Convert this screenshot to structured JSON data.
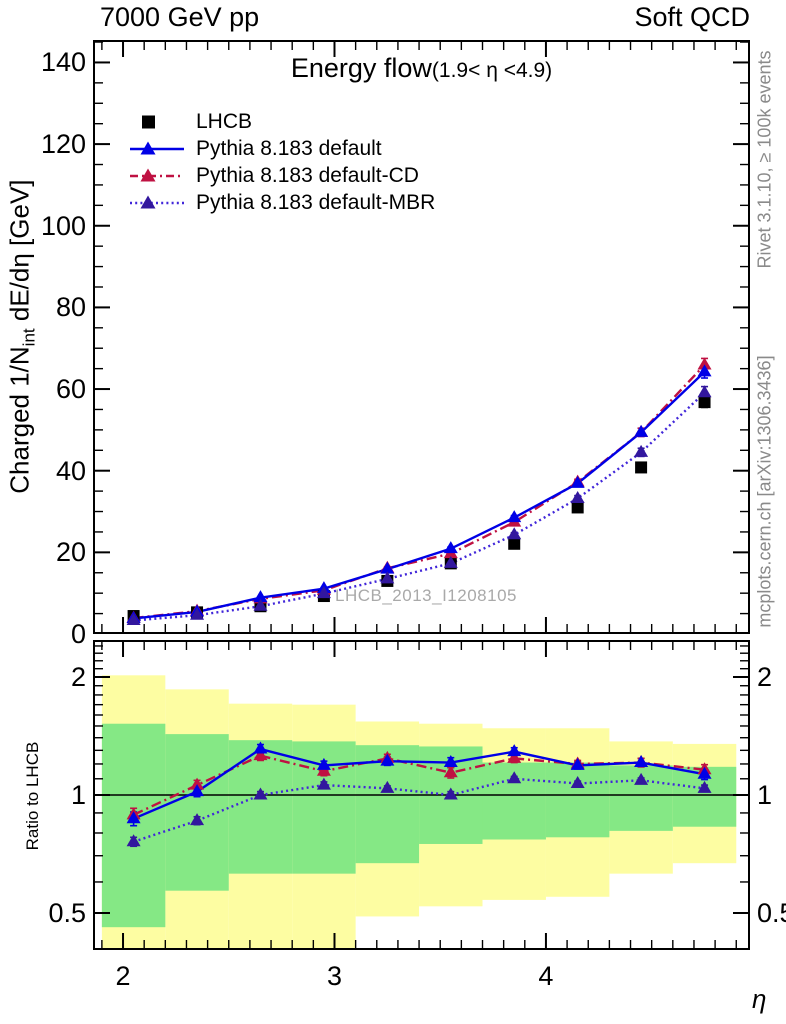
{
  "header": {
    "left": "7000 GeV pp",
    "right": "Soft QCD"
  },
  "side_notes": {
    "right_top": "Rivet 3.1.10, ≥ 100k events",
    "right_bottom": "mcplots.cern.ch [arXiv:1306.3436]"
  },
  "watermark": "LHCB_2013_I1208105",
  "title": {
    "main": "Energy flow",
    "range": "(1.9< η <4.9)"
  },
  "axes": {
    "main_ylabel": {
      "pre": "Charged 1/N",
      "sub": "int",
      "post": " dE/dη [GeV]"
    },
    "ratio_ylabel": "Ratio to LHCB",
    "xlabel": "η",
    "x_major_ticks": [
      2,
      3,
      4
    ],
    "main_y_major_ticks": [
      0,
      20,
      40,
      60,
      80,
      100,
      120,
      140
    ],
    "ratio_y_major_ticks": [
      "2",
      "1",
      "0.5"
    ]
  },
  "legend": [
    {
      "label": "LHCB",
      "marker": "square",
      "color": "#000000",
      "line": "none"
    },
    {
      "label": "Pythia 8.183 default",
      "marker": "triangle",
      "color": "#0000e6",
      "line": "solid",
      "line_color": "#0000e6"
    },
    {
      "label": "Pythia 8.183 default-CD",
      "marker": "triangle",
      "color": "#bf1142",
      "line": "dashdot",
      "line_color": "#bf1142"
    },
    {
      "label": "Pythia 8.183 default-MBR",
      "marker": "triangle",
      "color": "#32179e",
      "line": "dotted",
      "line_color": "#4126d9"
    }
  ],
  "colors": {
    "band_yellow": "#fdfda2",
    "band_green": "#85e885",
    "frame": "#000000",
    "gray_note": "#8a8a8a",
    "watermark_gray": "#a9a9a9"
  },
  "chart_data": [
    {
      "type": "line",
      "panel": "main",
      "title": "Energy flow (1.9< η <4.9)",
      "xlabel": "η",
      "ylabel": "Charged 1/N_int dE/dη [GeV]",
      "xlim": [
        1.86,
        4.97
      ],
      "ylim": [
        0,
        145.5
      ],
      "grid": false,
      "legend_position": "upper left",
      "x": [
        2.05,
        2.35,
        2.65,
        2.95,
        3.25,
        3.55,
        3.85,
        4.15,
        4.45,
        4.75
      ],
      "series": [
        {
          "name": "LHCB",
          "values": [
            4.4,
            5.3,
            6.8,
            9.3,
            13.0,
            17.3,
            22.1,
            31.0,
            40.8,
            56.8
          ],
          "errors": [
            0.2,
            0.2,
            0.3,
            0.3,
            0.4,
            0.5,
            0.6,
            0.8,
            1.0,
            1.3
          ]
        },
        {
          "name": "Pythia 8.183 default",
          "values": [
            3.8,
            5.4,
            8.9,
            11.1,
            15.9,
            20.9,
            28.5,
            36.9,
            49.4,
            64.2
          ],
          "errors": [
            0.15,
            0.15,
            0.2,
            0.25,
            0.3,
            0.4,
            0.5,
            0.7,
            1.0,
            1.5
          ]
        },
        {
          "name": "Pythia 8.183 default-CD",
          "values": [
            3.9,
            5.6,
            8.6,
            10.7,
            16.1,
            19.7,
            27.4,
            37.2,
            49.4,
            65.9
          ],
          "errors": [
            0.15,
            0.15,
            0.2,
            0.25,
            0.3,
            0.4,
            0.5,
            0.7,
            1.0,
            1.6
          ]
        },
        {
          "name": "Pythia 8.183 default-MBR",
          "values": [
            3.3,
            4.6,
            6.8,
            9.9,
            13.5,
            17.3,
            24.3,
            33.2,
            44.5,
            59.1
          ],
          "errors": [
            0.15,
            0.15,
            0.2,
            0.25,
            0.3,
            0.4,
            0.5,
            0.7,
            1.0,
            1.5
          ]
        }
      ]
    },
    {
      "type": "line",
      "panel": "ratio",
      "ylabel": "Ratio to LHCB",
      "yscale": "log",
      "ylim": [
        0.4,
        2.5
      ],
      "reference_line": 1,
      "x": [
        2.05,
        2.35,
        2.65,
        2.95,
        3.25,
        3.55,
        3.85,
        4.15,
        4.45,
        4.75
      ],
      "series": [
        {
          "name": "Pythia 8.183 default",
          "values": [
            0.87,
            1.02,
            1.31,
            1.19,
            1.22,
            1.21,
            1.29,
            1.19,
            1.21,
            1.13
          ],
          "errors": [
            0.035,
            0.03,
            0.035,
            0.03,
            0.03,
            0.035,
            0.03,
            0.025,
            0.03,
            0.035
          ]
        },
        {
          "name": "Pythia 8.183 default-CD",
          "values": [
            0.89,
            1.06,
            1.26,
            1.15,
            1.24,
            1.14,
            1.24,
            1.2,
            1.21,
            1.16
          ],
          "errors": [
            0.035,
            0.03,
            0.035,
            0.03,
            0.03,
            0.035,
            0.03,
            0.025,
            0.03,
            0.035
          ]
        },
        {
          "name": "Pythia 8.183 default-MBR",
          "values": [
            0.76,
            0.86,
            1.0,
            1.06,
            1.04,
            1.0,
            1.1,
            1.07,
            1.09,
            1.04
          ],
          "errors": [
            0.02,
            0.02,
            0.02,
            0.02,
            0.015,
            0.02,
            0.015,
            0.015,
            0.015,
            0.02
          ]
        }
      ],
      "bands": {
        "bin_edges": [
          1.9,
          2.2,
          2.5,
          2.8,
          3.1,
          3.4,
          3.7,
          4.0,
          4.3,
          4.6,
          4.9
        ],
        "yellow": [
          [
            0.38,
            2.02
          ],
          [
            0.38,
            1.86
          ],
          [
            0.38,
            1.71
          ],
          [
            0.38,
            1.7
          ],
          [
            0.49,
            1.54
          ],
          [
            0.52,
            1.52
          ],
          [
            0.54,
            1.48
          ],
          [
            0.55,
            1.48
          ],
          [
            0.63,
            1.37
          ],
          [
            0.67,
            1.35
          ]
        ],
        "green": [
          [
            0.46,
            1.52
          ],
          [
            0.57,
            1.43
          ],
          [
            0.63,
            1.38
          ],
          [
            0.63,
            1.37
          ],
          [
            0.67,
            1.34
          ],
          [
            0.75,
            1.33
          ],
          [
            0.77,
            1.21
          ],
          [
            0.78,
            1.21
          ],
          [
            0.81,
            1.19
          ],
          [
            0.83,
            1.18
          ]
        ]
      }
    }
  ]
}
